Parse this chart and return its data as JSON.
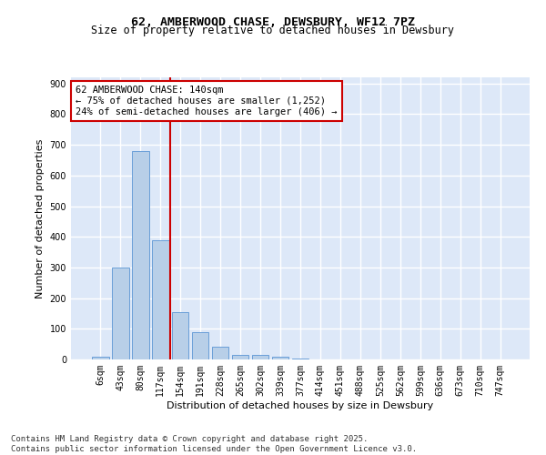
{
  "title_line1": "62, AMBERWOOD CHASE, DEWSBURY, WF12 7PZ",
  "title_line2": "Size of property relative to detached houses in Dewsbury",
  "xlabel": "Distribution of detached houses by size in Dewsbury",
  "ylabel": "Number of detached properties",
  "categories": [
    "6sqm",
    "43sqm",
    "80sqm",
    "117sqm",
    "154sqm",
    "191sqm",
    "228sqm",
    "265sqm",
    "302sqm",
    "339sqm",
    "377sqm",
    "414sqm",
    "451sqm",
    "488sqm",
    "525sqm",
    "562sqm",
    "599sqm",
    "636sqm",
    "673sqm",
    "710sqm",
    "747sqm"
  ],
  "values": [
    10,
    300,
    680,
    390,
    155,
    90,
    43,
    14,
    14,
    8,
    3,
    0,
    0,
    0,
    0,
    0,
    0,
    0,
    0,
    0,
    0
  ],
  "bar_color": "#b8cfe8",
  "bar_edge_color": "#6a9fd8",
  "vline_color": "#cc0000",
  "annotation_text": "62 AMBERWOOD CHASE: 140sqm\n← 75% of detached houses are smaller (1,252)\n24% of semi-detached houses are larger (406) →",
  "annotation_box_facecolor": "#ffffff",
  "annotation_box_edgecolor": "#cc0000",
  "ylim": [
    0,
    920
  ],
  "yticks": [
    0,
    100,
    200,
    300,
    400,
    500,
    600,
    700,
    800,
    900
  ],
  "background_color": "#dde8f8",
  "grid_color": "#ffffff",
  "footer_text": "Contains HM Land Registry data © Crown copyright and database right 2025.\nContains public sector information licensed under the Open Government Licence v3.0.",
  "title_fontsize": 9.5,
  "subtitle_fontsize": 8.5,
  "axis_label_fontsize": 8,
  "tick_fontsize": 7,
  "annotation_fontsize": 7.5,
  "footer_fontsize": 6.5
}
